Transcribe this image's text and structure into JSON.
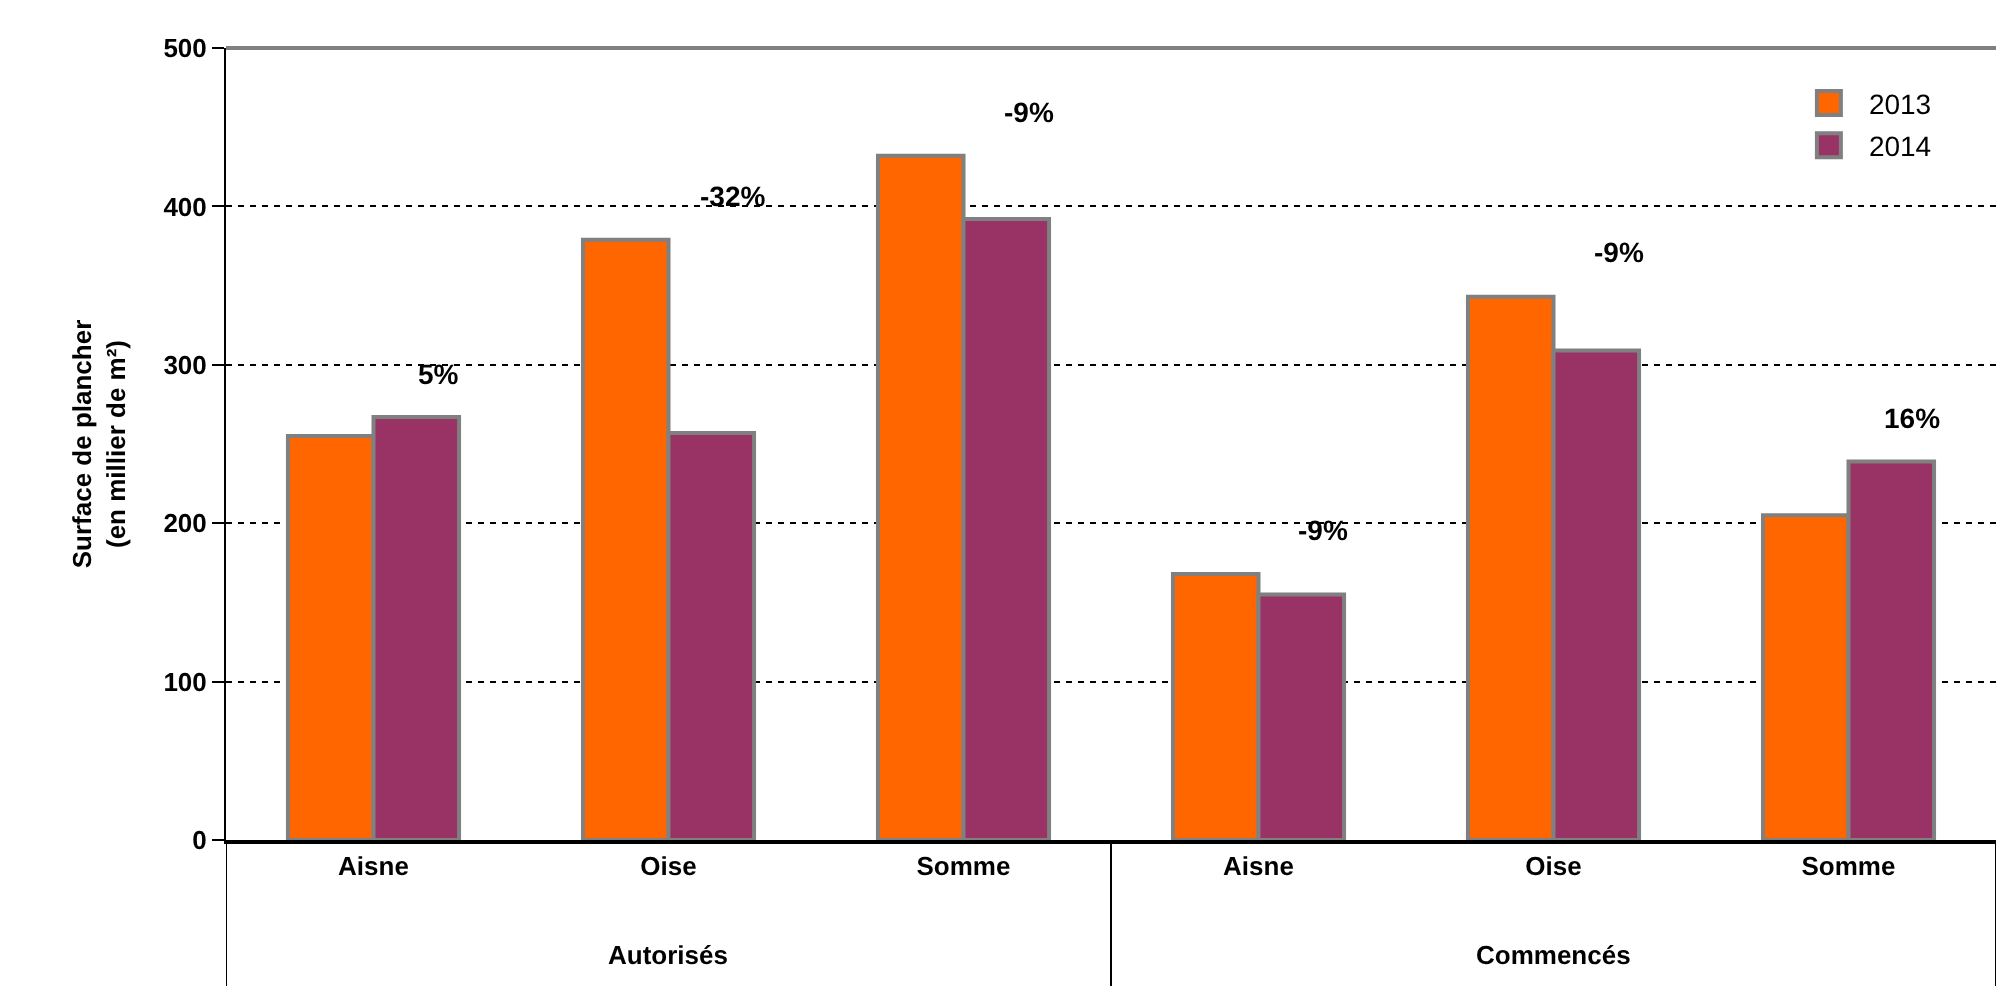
{
  "chart_data": {
    "type": "bar",
    "categories": [
      "Aisne",
      "Oise",
      "Somme",
      "Aisne",
      "Oise",
      "Somme"
    ],
    "series": [
      {
        "name": "2013",
        "color": "#ff6600",
        "values": [
          255,
          379,
          432,
          168,
          343,
          205
        ]
      },
      {
        "name": "2014",
        "color": "#993366",
        "values": [
          267,
          257,
          392,
          155,
          309,
          239
        ]
      }
    ],
    "ylabel": "Surface de plancher\n(en millier de m²)",
    "ylim": [
      0,
      500
    ],
    "yticks": [
      0,
      100,
      200,
      300,
      400,
      500
    ],
    "grid": "y",
    "legend": "top right",
    "annotations": [
      "5%",
      "-32%",
      "-9%",
      "-9%",
      "-9%",
      "16%",
      "Autorisés",
      "Commencés"
    ]
  }
}
